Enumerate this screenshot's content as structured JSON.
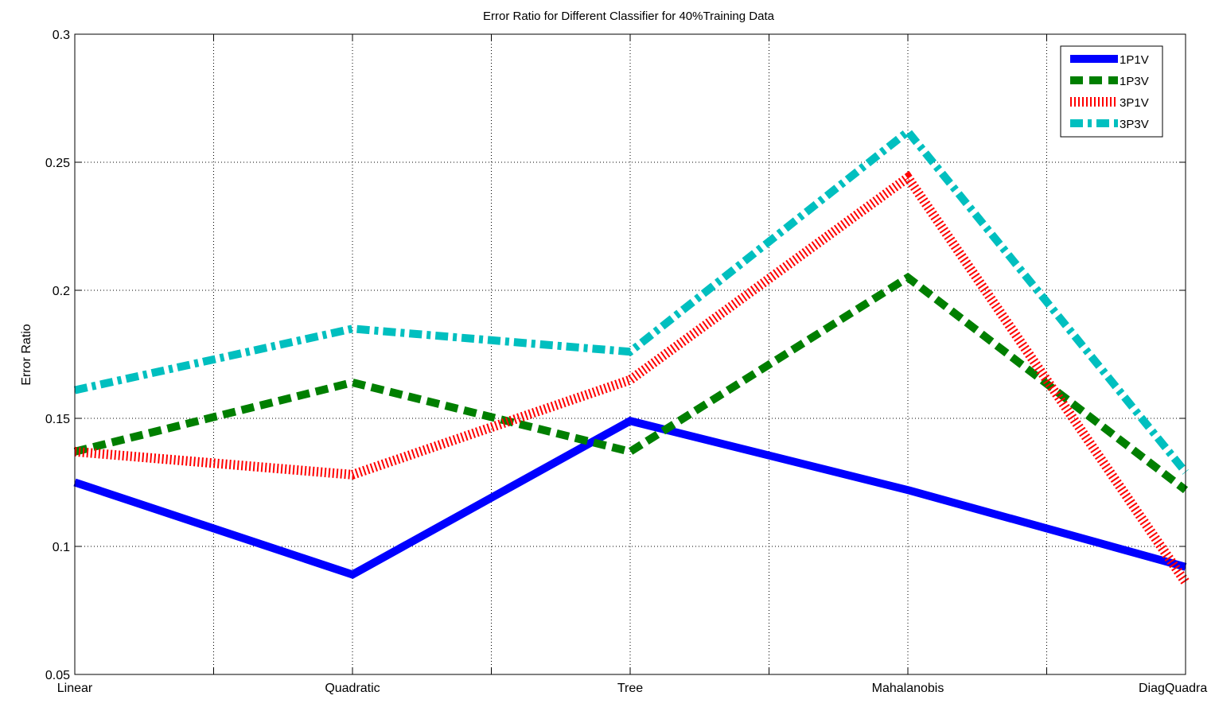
{
  "chart_data": {
    "type": "line",
    "title": "Error Ratio for Different Classifier for 40%Training Data",
    "xlabel": "",
    "ylabel": "Error Ratio",
    "categories": [
      "Linear",
      "Quadratic",
      "Tree",
      "Mahalanobis",
      "DiagQuadratic"
    ],
    "category_labels_shown": [
      "Linear",
      "Quadratic",
      "Tree",
      "Mahalanobis",
      "DiagQuadra"
    ],
    "ylim": [
      0.05,
      0.3
    ],
    "yticks": [
      0.05,
      0.1,
      0.15,
      0.2,
      0.25,
      0.3
    ],
    "ytick_labels": [
      "0.05",
      "0.1",
      "0.15",
      "0.2",
      "0.25",
      "0.3"
    ],
    "x_gridlines": [
      0,
      0.5,
      1,
      1.5,
      2,
      2.5,
      3,
      3.5,
      4
    ],
    "grid": true,
    "legend_position": "top-right",
    "series": [
      {
        "name": "1P1V",
        "color": "#0000ff",
        "style": "solid",
        "values": [
          0.125,
          0.089,
          0.149,
          0.122,
          0.092
        ]
      },
      {
        "name": "1P3V",
        "color": "#007f00",
        "style": "dashed",
        "values": [
          0.137,
          0.164,
          0.137,
          0.205,
          0.122
        ]
      },
      {
        "name": "3P1V",
        "color": "#ff0000",
        "style": "dotted",
        "values": [
          0.137,
          0.128,
          0.165,
          0.244,
          0.086
        ]
      },
      {
        "name": "3P3V",
        "color": "#00bfbf",
        "style": "dashdot",
        "values": [
          0.161,
          0.185,
          0.176,
          0.262,
          0.129
        ]
      }
    ]
  }
}
